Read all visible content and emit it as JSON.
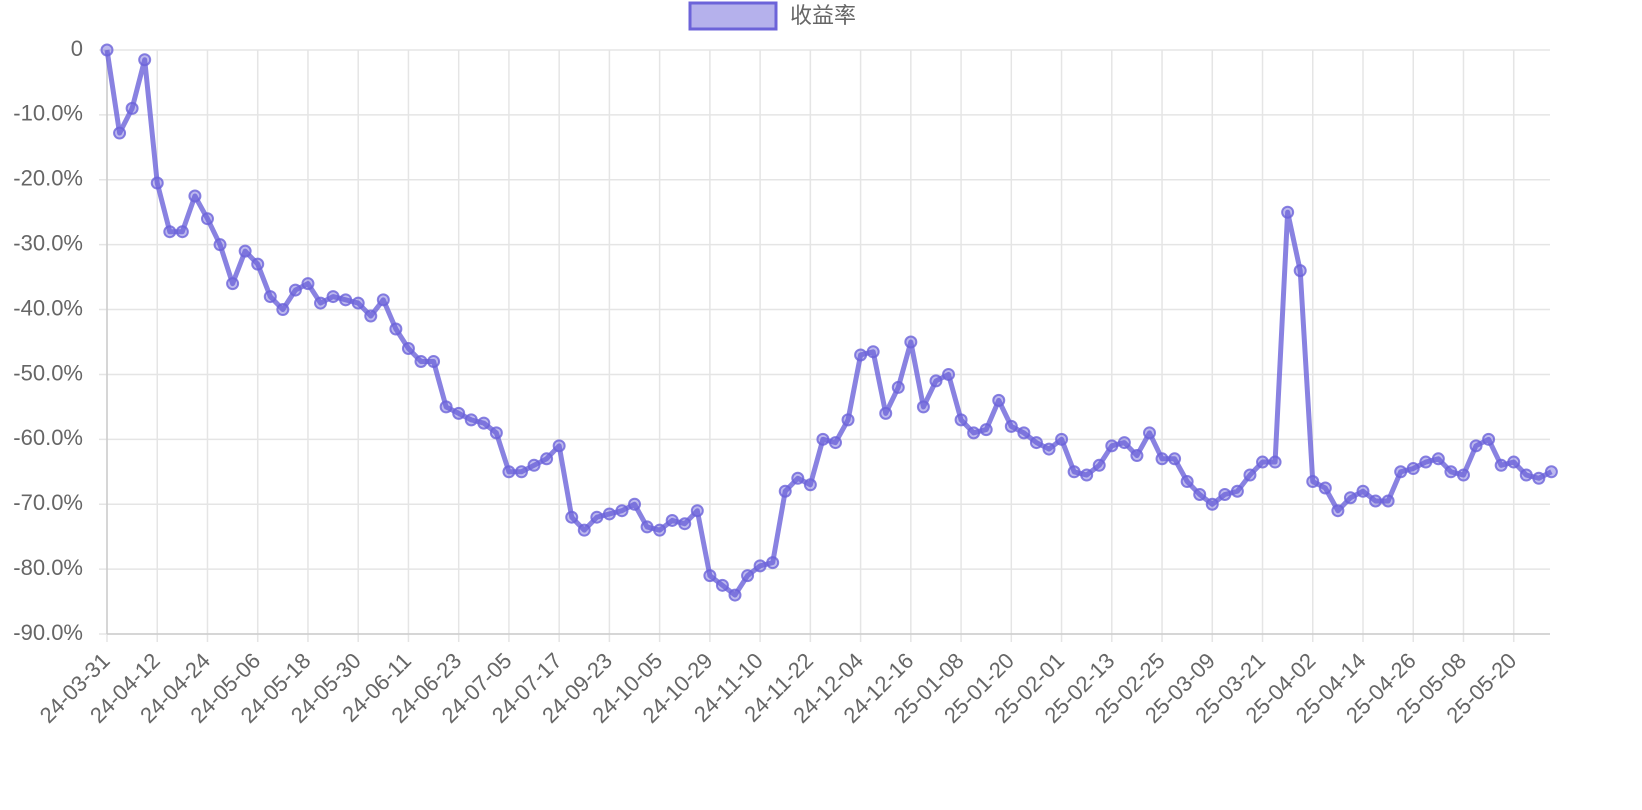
{
  "chart_data": {
    "type": "line",
    "categories": [
      "24-03-31",
      null,
      null,
      null,
      "24-04-12",
      null,
      null,
      null,
      "24-04-24",
      null,
      null,
      null,
      "24-05-06",
      null,
      null,
      null,
      "24-05-18",
      null,
      null,
      null,
      "24-05-30",
      null,
      null,
      null,
      "24-06-11",
      null,
      null,
      null,
      "24-06-23",
      null,
      null,
      null,
      "24-07-05",
      null,
      null,
      null,
      "24-07-17",
      null,
      null,
      null,
      "24-09-23",
      null,
      null,
      null,
      "24-10-05",
      null,
      null,
      null,
      "24-10-29",
      null,
      null,
      null,
      "24-11-10",
      null,
      null,
      null,
      "24-11-22",
      null,
      null,
      null,
      "24-12-04",
      null,
      null,
      null,
      "24-12-16",
      null,
      null,
      null,
      "25-01-08",
      null,
      null,
      null,
      "25-01-20",
      null,
      null,
      null,
      "25-02-01",
      null,
      null,
      null,
      "25-02-13",
      null,
      null,
      null,
      "25-02-25",
      null,
      null,
      null,
      "25-03-09",
      null,
      null,
      null,
      "25-03-21",
      null,
      null,
      null,
      "25-04-02",
      null,
      null,
      null,
      "25-04-14",
      null,
      null,
      null,
      "25-04-26",
      null,
      null,
      null,
      "25-05-08",
      null,
      null,
      null,
      "25-05-20",
      null,
      null,
      null
    ],
    "series": [
      {
        "name": "收益率",
        "color": "#6c63d9",
        "values": [
          0,
          -12.8,
          -9,
          -1.5,
          -20.5,
          -28,
          -28,
          -22.5,
          -26,
          -30,
          -36,
          -31,
          -33,
          -38,
          -40,
          -37,
          -36,
          -39,
          -38,
          -38.5,
          -39,
          -41,
          -38.5,
          -43,
          -46,
          -48,
          -48,
          -55,
          -56,
          -57,
          -57.5,
          -59,
          -65,
          -65,
          -64,
          -63,
          -61,
          -72,
          -74,
          -72,
          -71.5,
          -71,
          -70,
          -73.5,
          -74,
          -72.5,
          -73,
          -71,
          -81,
          -82.5,
          -84,
          -81,
          -79.5,
          -79,
          -68,
          -66,
          -67,
          -60,
          -60.5,
          -57,
          -47,
          -46.5,
          -56,
          -52,
          -45,
          -55,
          -51,
          -50,
          -57,
          -59,
          -58.5,
          -54,
          -58,
          -59,
          -60.5,
          -61.5,
          -60,
          -65,
          -65.5,
          -64,
          -61,
          -60.5,
          -62.5,
          -59,
          -63,
          -63,
          -66.5,
          -68.5,
          -70,
          -68.5,
          -68,
          -65.5,
          -63.5,
          -63.5,
          -25,
          -34,
          -66.5,
          -67.5,
          -71,
          -69,
          -68,
          -69.5,
          -69.5,
          -65,
          -64.5,
          -63.5,
          -63,
          -65,
          -65.5,
          -61,
          -60,
          -64,
          -63.5,
          -65.5,
          -66,
          -65
        ]
      }
    ],
    "ylim": [
      -90,
      0
    ],
    "yticks": [
      0,
      {
        "value": -10,
        "label": "-10.0%"
      },
      {
        "value": -20,
        "label": "-20.0%"
      },
      {
        "value": -30,
        "label": "-30.0%"
      },
      {
        "value": -40,
        "label": "-40.0%"
      },
      {
        "value": -50,
        "label": "-50.0%"
      },
      {
        "value": -60,
        "label": "-60.0%"
      },
      {
        "value": -70,
        "label": "-70.0%"
      },
      {
        "value": -80,
        "label": "-80.0%"
      },
      {
        "value": -90,
        "label": "-90.0%"
      }
    ],
    "grid": true,
    "legend": "top"
  }
}
